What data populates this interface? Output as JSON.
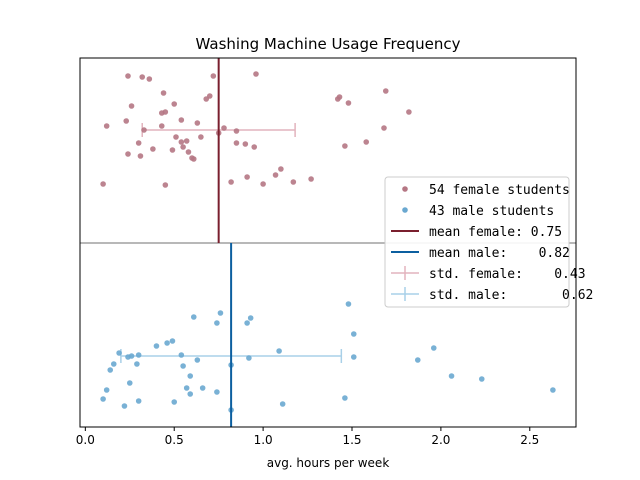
{
  "chart_data": {
    "type": "scatter",
    "title": "Washing Machine Usage Frequency",
    "xlabel": "avg. hours per week",
    "ylabel": "",
    "xlim": [
      -0.03,
      2.76
    ],
    "xticks": [
      0.0,
      0.5,
      1.0,
      1.5,
      2.0,
      2.5
    ],
    "xtick_labels": [
      "0.0",
      "0.5",
      "1.0",
      "1.5",
      "2.0",
      "2.5"
    ],
    "grid": false,
    "legend_position": "center-right",
    "colors": {
      "female_points": "#b57784",
      "male_points": "#6aa8d0",
      "mean_female": "#7a1f2e",
      "mean_male": "#0c5fa0",
      "std_female": "#e2b3bd",
      "std_male": "#a9d0e8",
      "divider": "#a0a0a0"
    },
    "series": [
      {
        "name": "54 female students",
        "group": "female",
        "mean": 0.75,
        "std": 0.43,
        "points": [
          [
            0.24,
            76
          ],
          [
            0.32,
            77
          ],
          [
            0.36,
            79
          ],
          [
            0.72,
            76
          ],
          [
            0.96,
            74
          ],
          [
            0.7,
            96
          ],
          [
            0.68,
            99
          ],
          [
            0.44,
            93
          ],
          [
            0.12,
            126
          ],
          [
            0.23,
            121
          ],
          [
            0.26,
            106
          ],
          [
            0.43,
            113
          ],
          [
            0.45,
            112
          ],
          [
            0.5,
            104
          ],
          [
            0.54,
            120
          ],
          [
            0.63,
            123
          ],
          [
            0.43,
            126
          ],
          [
            0.33,
            130
          ],
          [
            0.51,
            137
          ],
          [
            0.54,
            142
          ],
          [
            0.57,
            141
          ],
          [
            0.65,
            137
          ],
          [
            0.85,
            131
          ],
          [
            0.85,
            143
          ],
          [
            0.9,
            144
          ],
          [
            0.95,
            147
          ],
          [
            0.24,
            154
          ],
          [
            0.3,
            143
          ],
          [
            0.31,
            156
          ],
          [
            0.38,
            149
          ],
          [
            0.49,
            150
          ],
          [
            0.55,
            147
          ],
          [
            0.58,
            152
          ],
          [
            0.6,
            158
          ],
          [
            0.61,
            159
          ],
          [
            0.1,
            184
          ],
          [
            0.45,
            185
          ],
          [
            0.82,
            182
          ],
          [
            0.91,
            177
          ],
          [
            1.0,
            184
          ],
          [
            1.07,
            175
          ],
          [
            1.17,
            182
          ],
          [
            1.27,
            179
          ],
          [
            1.42,
            99
          ],
          [
            1.43,
            97
          ],
          [
            1.48,
            103
          ],
          [
            1.58,
            142
          ],
          [
            1.69,
            91
          ],
          [
            1.68,
            128
          ],
          [
            1.82,
            112
          ],
          [
            1.46,
            146
          ],
          [
            0.75,
            133
          ],
          [
            0.78,
            128
          ],
          [
            1.1,
            169
          ]
        ]
      },
      {
        "name": "43 male students",
        "group": "male",
        "mean": 0.82,
        "std": 0.62,
        "points": [
          [
            1.48,
            304
          ],
          [
            0.61,
            317
          ],
          [
            0.76,
            313
          ],
          [
            0.74,
            323
          ],
          [
            0.91,
            323
          ],
          [
            0.93,
            318
          ],
          [
            1.51,
            334
          ],
          [
            0.46,
            343
          ],
          [
            0.49,
            341
          ],
          [
            0.4,
            346
          ],
          [
            1.09,
            351
          ],
          [
            1.96,
            348
          ],
          [
            0.19,
            353
          ],
          [
            0.24,
            357
          ],
          [
            0.26,
            356
          ],
          [
            0.3,
            355
          ],
          [
            0.54,
            355
          ],
          [
            0.16,
            364
          ],
          [
            0.63,
            360
          ],
          [
            0.92,
            358
          ],
          [
            0.82,
            365
          ],
          [
            1.51,
            357
          ],
          [
            1.87,
            360
          ],
          [
            0.14,
            370
          ],
          [
            0.55,
            366
          ],
          [
            2.06,
            376
          ],
          [
            2.23,
            379
          ],
          [
            0.25,
            383
          ],
          [
            0.59,
            376
          ],
          [
            0.12,
            390
          ],
          [
            0.57,
            388
          ],
          [
            0.66,
            388
          ],
          [
            0.74,
            392
          ],
          [
            2.63,
            390
          ],
          [
            0.59,
            394
          ],
          [
            0.1,
            399
          ],
          [
            0.3,
            401
          ],
          [
            0.5,
            402
          ],
          [
            1.46,
            398
          ],
          [
            0.22,
            406
          ],
          [
            1.11,
            404
          ],
          [
            0.82,
            410
          ],
          [
            0.29,
            364
          ]
        ]
      }
    ],
    "legend": [
      {
        "kind": "female-point",
        "label": "54 female students"
      },
      {
        "kind": "male-point",
        "label": "43 male students"
      },
      {
        "kind": "mean-female",
        "label": "mean female: 0.75"
      },
      {
        "kind": "mean-male",
        "label": "mean male:    0.82"
      },
      {
        "kind": "std-female",
        "label": "std. female:    0.43"
      },
      {
        "kind": "std-male",
        "label": "std. male:       0.62"
      }
    ]
  }
}
